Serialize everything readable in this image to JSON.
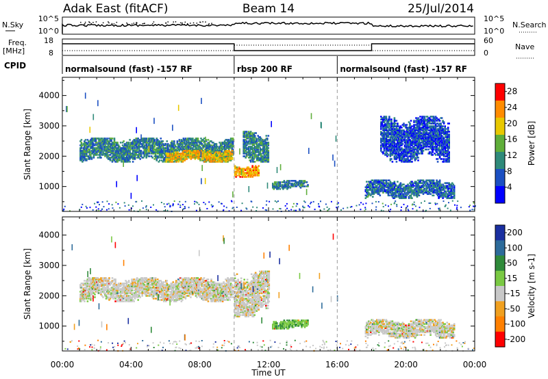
{
  "header": {
    "station": "Adak East (fitACF)",
    "beam": "Beam 14",
    "date": "25/Jul/2014"
  },
  "nsky_panel": {
    "left_label": "N.Sky",
    "right_label": "N.Search",
    "left_ticks": [
      "10^5",
      "10^0"
    ],
    "right_ticks": [
      "10^5",
      "10^0"
    ]
  },
  "freq_panel": {
    "left_label_1": "Freq.",
    "left_label_2": "[MHz]",
    "right_label": "Nave",
    "left_ticks": [
      "18",
      "8"
    ],
    "right_ticks": [
      "60",
      "0"
    ]
  },
  "cpid": {
    "label": "CPID",
    "segments": [
      {
        "start": 0,
        "end": 10,
        "name": "normalsound (fast) -157 RF"
      },
      {
        "start": 10,
        "end": 16,
        "name": "rbsp 200 RF"
      },
      {
        "start": 16,
        "end": 24,
        "name": "normalsound (fast) -157 RF"
      }
    ]
  },
  "chart_data": [
    {
      "type": "heatmap",
      "title": "",
      "xlabel": "Time UT",
      "ylabel": "Slant Range [km]",
      "xlim": [
        0,
        24
      ],
      "ylim": [
        180,
        4600
      ],
      "x_ticks": [
        "00:00",
        "04:00",
        "08:00",
        "12:00",
        "16:00",
        "20:00",
        "00:00"
      ],
      "y_ticks": [
        1000,
        2000,
        3000,
        4000
      ],
      "colorbar": {
        "label": "Power [dB]",
        "ticks": [
          4,
          8,
          12,
          16,
          20,
          24,
          28
        ],
        "range": [
          0,
          30
        ],
        "colors": [
          "#0000ff",
          "#1b4fc2",
          "#2f8a7a",
          "#5fae3a",
          "#e8c800",
          "#ff8c00",
          "#ff0000"
        ]
      },
      "echo_regions": [
        {
          "t_start": 1.0,
          "t_end": 9.9,
          "r_min": 1800,
          "r_max": 2600,
          "power_dB": 10
        },
        {
          "t_start": 6.0,
          "t_end": 9.9,
          "r_min": 1800,
          "r_max": 2200,
          "power_dB": 20
        },
        {
          "t_start": 10.0,
          "t_end": 11.4,
          "r_min": 1300,
          "r_max": 1700,
          "power_dB": 22
        },
        {
          "t_start": 10.5,
          "t_end": 12.0,
          "r_min": 1800,
          "r_max": 2800,
          "power_dB": 10
        },
        {
          "t_start": 12.2,
          "t_end": 14.3,
          "r_min": 900,
          "r_max": 1200,
          "power_dB": 10
        },
        {
          "t_start": 17.6,
          "t_end": 22.8,
          "r_min": 600,
          "r_max": 1200,
          "power_dB": 8
        },
        {
          "t_start": 18.5,
          "t_end": 22.5,
          "r_min": 1800,
          "r_max": 3300,
          "power_dB": 6
        }
      ]
    },
    {
      "type": "heatmap",
      "title": "",
      "xlabel": "Time UT",
      "ylabel": "Slant Range [km]",
      "xlim": [
        0,
        24
      ],
      "ylim": [
        180,
        4600
      ],
      "x_ticks": [
        "00:00",
        "04:00",
        "08:00",
        "12:00",
        "16:00",
        "20:00",
        "00:00"
      ],
      "y_ticks": [
        1000,
        2000,
        3000,
        4000
      ],
      "colorbar": {
        "label": "Velocity [m s-1]",
        "ticks": [
          200,
          100,
          50,
          15,
          -15,
          -50,
          -100,
          -200
        ],
        "colors": [
          "#1a2fa0",
          "#2d6b9a",
          "#2f8a3a",
          "#7ac943",
          "#c8c8c8",
          "#f0a020",
          "#ff8000",
          "#ff0000"
        ]
      },
      "echo_regions": [
        {
          "t_start": 1.0,
          "t_end": 9.9,
          "r_min": 1800,
          "r_max": 2600,
          "velocity": 0
        },
        {
          "t_start": 10.0,
          "t_end": 12.0,
          "r_min": 1300,
          "r_max": 2800,
          "velocity": 0
        },
        {
          "t_start": 12.2,
          "t_end": 14.3,
          "r_min": 900,
          "r_max": 1200,
          "velocity": 40
        },
        {
          "t_start": 17.6,
          "t_end": 22.8,
          "r_min": 600,
          "r_max": 1200,
          "velocity": 0
        }
      ]
    }
  ]
}
